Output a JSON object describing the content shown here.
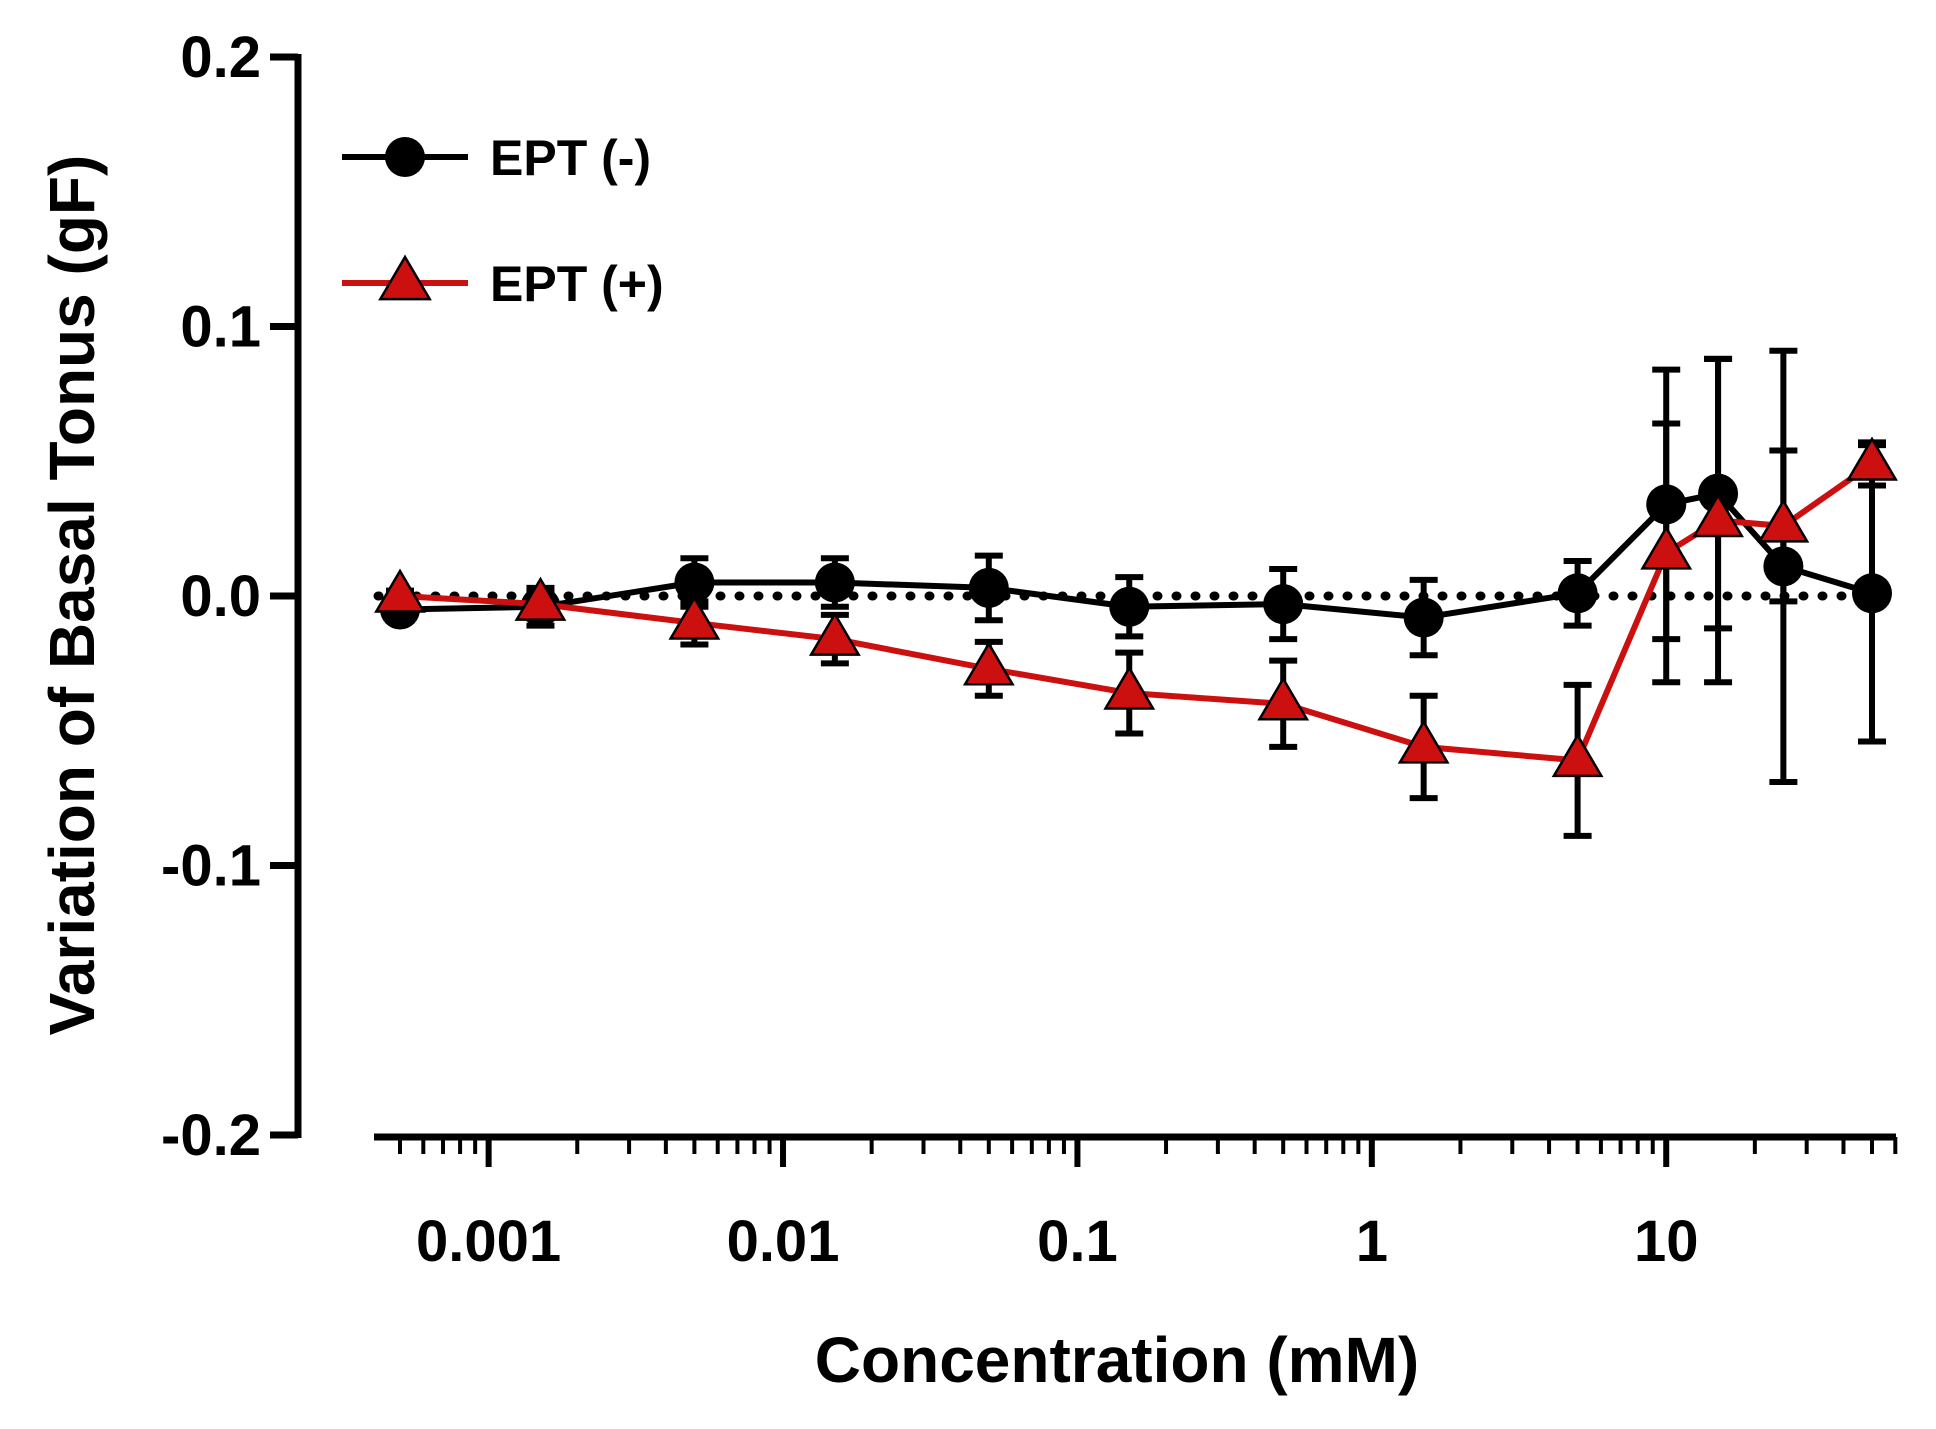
{
  "chart_data": {
    "type": "line",
    "x_scale": "log",
    "xlabel": "Concentration (mM)",
    "ylabel": "Variation of Basal Tonus (gF)",
    "ylim": [
      -0.2,
      0.2
    ],
    "xlim": [
      0.0003,
      70
    ],
    "x_ticks": [
      {
        "value": 0.001,
        "label": "0.001"
      },
      {
        "value": 0.01,
        "label": "0.01"
      },
      {
        "value": 0.1,
        "label": "0.1"
      },
      {
        "value": 1,
        "label": "1"
      },
      {
        "value": 10,
        "label": "10"
      }
    ],
    "y_ticks": [
      {
        "value": 0.2,
        "label": "0.2"
      },
      {
        "value": 0.1,
        "label": "0.1"
      },
      {
        "value": 0.0,
        "label": "0.0"
      },
      {
        "value": -0.1,
        "label": "-0.1"
      },
      {
        "value": -0.2,
        "label": "-0.2"
      }
    ],
    "reference_line": {
      "y": 0.0,
      "style": "dotted"
    },
    "legend_position": "top-left",
    "series": [
      {
        "name": "EPT (-)",
        "color": "#000000",
        "marker": "circle",
        "x": [
          0.0005,
          0.0015,
          0.005,
          0.015,
          0.05,
          0.15,
          0.5,
          1.5,
          5,
          10,
          15,
          25,
          50
        ],
        "y": [
          -0.005,
          -0.004,
          0.005,
          0.005,
          0.003,
          -0.004,
          -0.003,
          -0.008,
          0.001,
          0.034,
          0.038,
          0.011,
          0.001
        ],
        "error": [
          0.003,
          0.007,
          0.009,
          0.009,
          0.012,
          0.011,
          0.013,
          0.014,
          0.012,
          0.05,
          0.05,
          0.08,
          0.055
        ]
      },
      {
        "name": "EPT (+)",
        "color": "#cc1010",
        "marker": "triangle",
        "x": [
          0.0005,
          0.0015,
          0.005,
          0.015,
          0.05,
          0.15,
          0.5,
          1.5,
          5,
          10,
          15,
          25,
          50
        ],
        "y": [
          0.0,
          -0.003,
          -0.01,
          -0.016,
          -0.027,
          -0.036,
          -0.04,
          -0.056,
          -0.061,
          0.016,
          0.028,
          0.026,
          0.049
        ],
        "error": [
          0.002,
          0.004,
          0.008,
          0.009,
          0.01,
          0.015,
          0.016,
          0.019,
          0.028,
          0.048,
          0.06,
          0.028,
          0.008
        ]
      }
    ]
  }
}
